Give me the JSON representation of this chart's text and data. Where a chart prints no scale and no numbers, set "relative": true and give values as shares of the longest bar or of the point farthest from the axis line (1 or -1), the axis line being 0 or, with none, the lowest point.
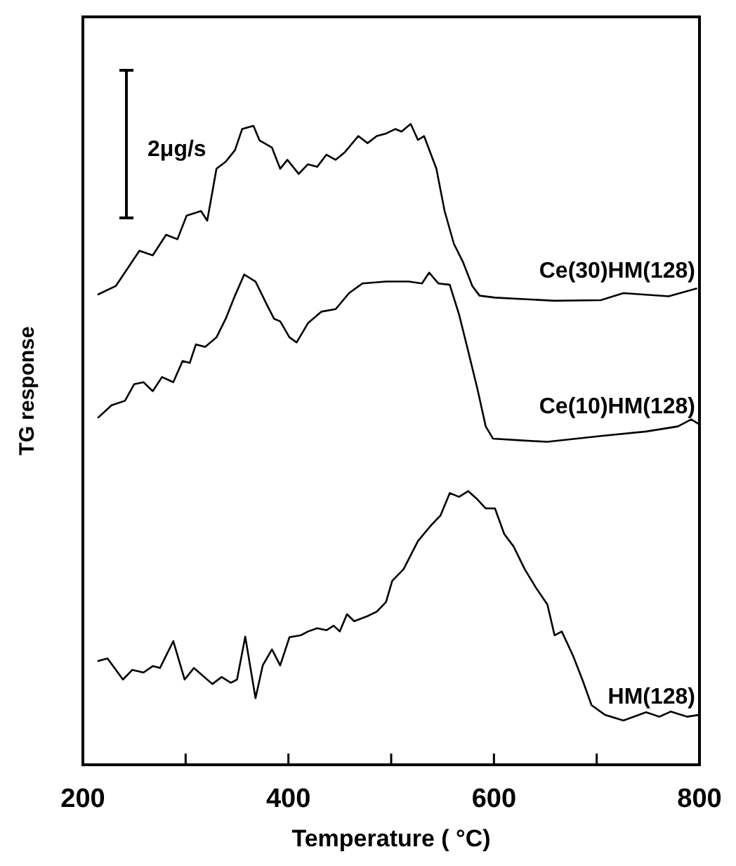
{
  "chart_data": {
    "type": "line",
    "relative": true,
    "xlabel": "Temperature  ( °C)",
    "ylabel": "TG response",
    "xlim": [
      200,
      800
    ],
    "xticks": [
      200,
      {
        "value": 300,
        "label": null
      },
      400,
      {
        "value": 500,
        "label": null
      },
      600,
      {
        "value": 700,
        "label": null
      },
      800
    ],
    "tick_labels": "x",
    "grid": false,
    "legend": false,
    "marker": "none",
    "line_style": "solid",
    "annotations": [
      "2μg/s"
    ],
    "series": [
      {
        "name": "Ce(30)HM(128)",
        "color": "#000000",
        "x": [
          215,
          232,
          255,
          268,
          281,
          292,
          301,
          315,
          321,
          330,
          339,
          348,
          355,
          366,
          372,
          384,
          392,
          399,
          410,
          419,
          428,
          437,
          446,
          455,
          468,
          477,
          486,
          495,
          504,
          510,
          519,
          526,
          532,
          544,
          552,
          561,
          570,
          579,
          586,
          601,
          659,
          704,
          726,
          770,
          797
        ],
        "values": [
          0.734,
          0.747,
          0.802,
          0.795,
          0.827,
          0.82,
          0.857,
          0.864,
          0.849,
          0.93,
          0.941,
          0.959,
          0.992,
          0.997,
          0.974,
          0.963,
          0.93,
          0.944,
          0.922,
          0.937,
          0.933,
          0.952,
          0.944,
          0.956,
          0.981,
          0.97,
          0.981,
          0.985,
          0.992,
          0.988,
          1,
          0.975,
          0.981,
          0.93,
          0.864,
          0.813,
          0.784,
          0.747,
          0.732,
          0.729,
          0.724,
          0.725,
          0.736,
          0.731,
          0.743
        ]
      },
      {
        "name": "Ce(10)HM(128)",
        "color": "#000000",
        "x": [
          215,
          228,
          241,
          250,
          259,
          268,
          277,
          288,
          297,
          304,
          310,
          319,
          330,
          339,
          348,
          357,
          368,
          379,
          386,
          392,
          401,
          408,
          419,
          432,
          446,
          459,
          472,
          495,
          517,
          530,
          537,
          546,
          557,
          566,
          575,
          584,
          592,
          599,
          628,
          652,
          704,
          748,
          779,
          792,
          800
        ],
        "values": [
          0.542,
          0.561,
          0.568,
          0.594,
          0.597,
          0.583,
          0.605,
          0.597,
          0.63,
          0.627,
          0.656,
          0.652,
          0.667,
          0.696,
          0.732,
          0.765,
          0.754,
          0.718,
          0.696,
          0.692,
          0.667,
          0.659,
          0.689,
          0.707,
          0.711,
          0.736,
          0.751,
          0.754,
          0.754,
          0.751,
          0.768,
          0.751,
          0.749,
          0.703,
          0.645,
          0.586,
          0.528,
          0.509,
          0.506,
          0.504,
          0.513,
          0.52,
          0.528,
          0.539,
          0.531
        ]
      },
      {
        "name": "HM(128)",
        "color": "#000000",
        "x": [
          215,
          224,
          239,
          248,
          259,
          268,
          275,
          288,
          299,
          308,
          326,
          335,
          344,
          350,
          358,
          368,
          375,
          384,
          392,
          401,
          412,
          419,
          428,
          437,
          444,
          450,
          457,
          464,
          477,
          486,
          495,
          501,
          512,
          526,
          539,
          548,
          557,
          566,
          575,
          584,
          592,
          601,
          610,
          619,
          630,
          641,
          652,
          659,
          666,
          677,
          686,
          695,
          708,
          726,
          748,
          761,
          772,
          788,
          800
        ],
        "values": [
          0.162,
          0.166,
          0.133,
          0.148,
          0.144,
          0.154,
          0.151,
          0.193,
          0.133,
          0.151,
          0.126,
          0.137,
          0.128,
          0.133,
          0.2,
          0.104,
          0.155,
          0.18,
          0.155,
          0.199,
          0.202,
          0.208,
          0.213,
          0.21,
          0.217,
          0.208,
          0.235,
          0.224,
          0.232,
          0.239,
          0.254,
          0.287,
          0.305,
          0.349,
          0.374,
          0.389,
          0.424,
          0.418,
          0.427,
          0.414,
          0.4,
          0.4,
          0.36,
          0.341,
          0.305,
          0.276,
          0.25,
          0.202,
          0.208,
          0.17,
          0.133,
          0.093,
          0.078,
          0.069,
          0.082,
          0.075,
          0.083,
          0.075,
          0.078
        ]
      }
    ]
  }
}
